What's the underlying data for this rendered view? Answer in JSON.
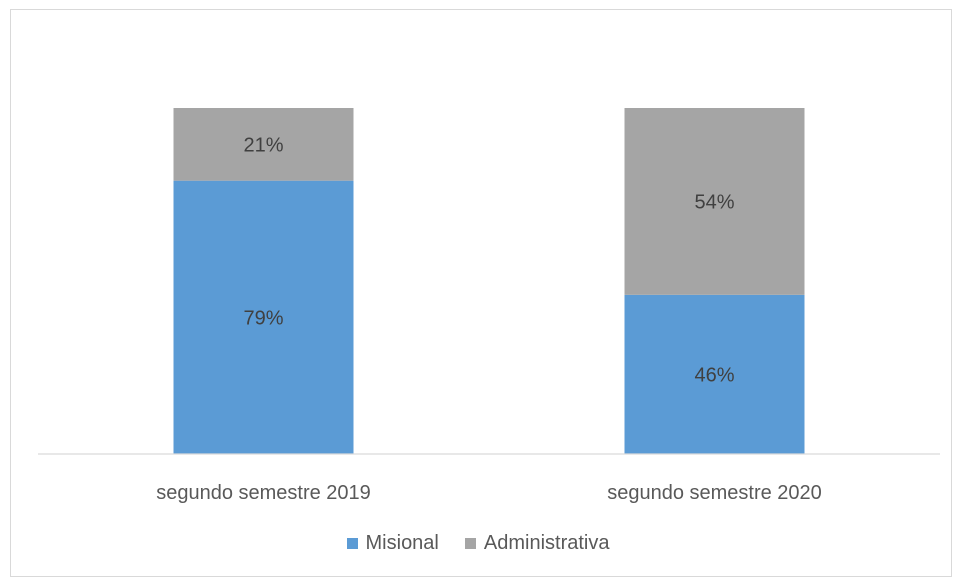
{
  "chart_data": {
    "type": "bar",
    "stacked": true,
    "percent_stacked": true,
    "categories": [
      "segundo semestre 2019",
      "segundo semestre 2020"
    ],
    "series": [
      {
        "name": "Misional",
        "values": [
          79,
          46
        ],
        "labels": [
          "79%",
          "46%"
        ],
        "color": "#5b9bd5"
      },
      {
        "name": "Administrativa",
        "values": [
          21,
          54
        ],
        "labels": [
          "21%",
          "54%"
        ],
        "color": "#a5a5a5"
      }
    ],
    "ylim": [
      0,
      100
    ],
    "grid": false,
    "legend_position": "bottom"
  }
}
